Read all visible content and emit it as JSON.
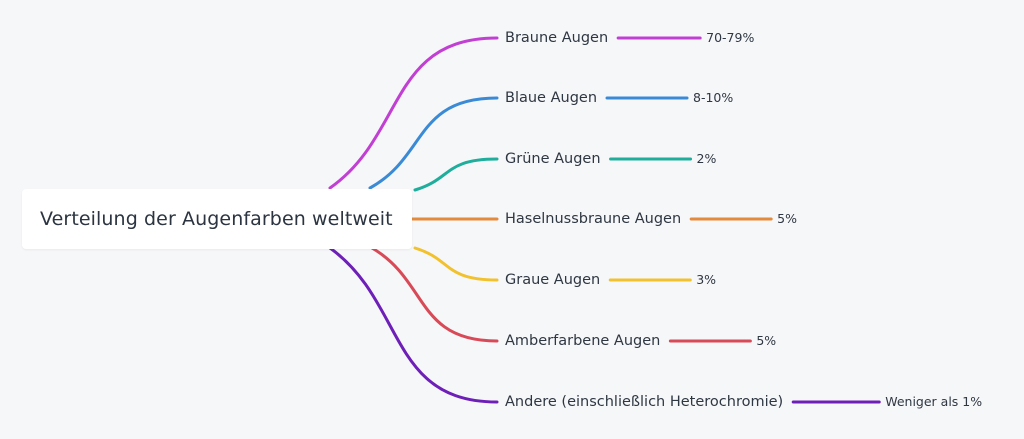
{
  "root": {
    "label": "Verteilung der Augenfarben weltweit"
  },
  "branches": [
    {
      "label": "Braune Augen",
      "value": "70-79%",
      "color": "#c13fd2"
    },
    {
      "label": "Blaue Augen",
      "value": "8-10%",
      "color": "#3a8ad6"
    },
    {
      "label": "Grüne Augen",
      "value": "2%",
      "color": "#1fae9c"
    },
    {
      "label": "Haselnussbraune Augen",
      "value": "5%",
      "color": "#e48a3c"
    },
    {
      "label": "Graue Augen",
      "value": "3%",
      "color": "#f2c12e"
    },
    {
      "label": "Amberfarbene Augen",
      "value": "5%",
      "color": "#d84a57"
    },
    {
      "label": "Andere (einschließlich Heterochromie)",
      "value": "Weniger als 1%",
      "color": "#6d1fb8"
    }
  ]
}
